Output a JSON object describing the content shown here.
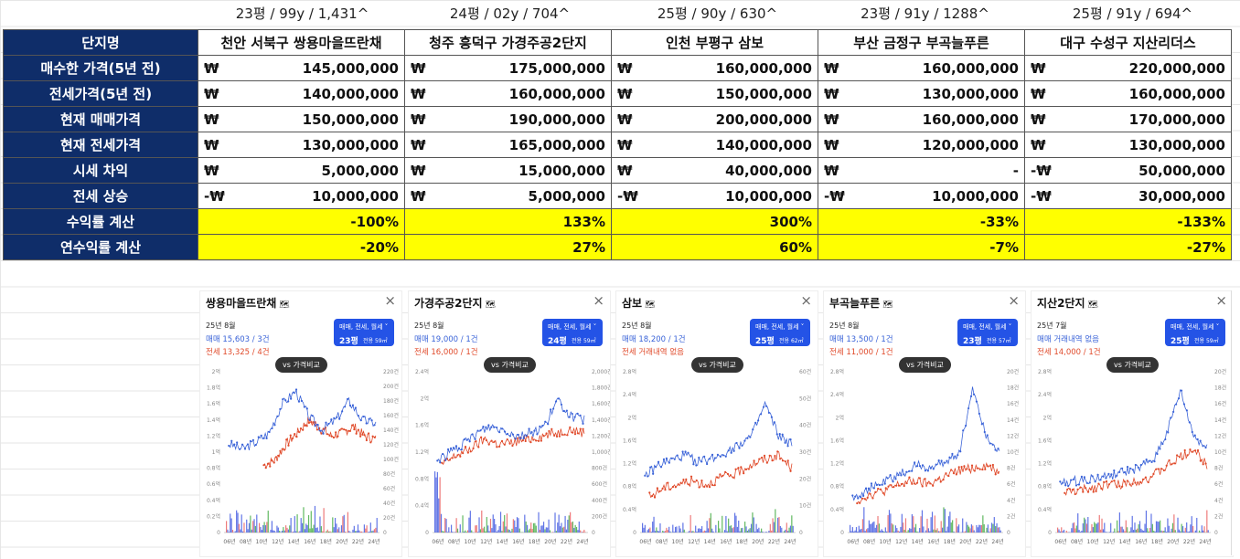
{
  "column_headers": [
    "23평 / 99y / 1,431^",
    "24평 / 02y / 704^",
    "25평 / 90y / 630^",
    "23평 / 91y / 1288^",
    "25평 / 91y / 694^"
  ],
  "table": {
    "corner_label": "단지명",
    "complex_names": [
      "천안 서북구 쌍용마을뜨란채",
      "청주 흥덕구 가경주공2단지",
      "인천 부평구 삼보",
      "부산 금정구 부곡늘푸른",
      "대구 수성구 지산리더스"
    ],
    "rows": [
      {
        "label": "매수한 가격(5년 전)",
        "cells": [
          [
            "₩",
            "145,000,000"
          ],
          [
            "₩",
            "175,000,000"
          ],
          [
            "₩",
            "160,000,000"
          ],
          [
            "₩",
            "160,000,000"
          ],
          [
            "₩",
            "220,000,000"
          ]
        ]
      },
      {
        "label": "전세가격(5년 전)",
        "cells": [
          [
            "₩",
            "140,000,000"
          ],
          [
            "₩",
            "160,000,000"
          ],
          [
            "₩",
            "150,000,000"
          ],
          [
            "₩",
            "130,000,000"
          ],
          [
            "₩",
            "160,000,000"
          ]
        ]
      },
      {
        "label": "현재 매매가격",
        "cells": [
          [
            "₩",
            "150,000,000"
          ],
          [
            "₩",
            "190,000,000"
          ],
          [
            "₩",
            "200,000,000"
          ],
          [
            "₩",
            "160,000,000"
          ],
          [
            "₩",
            "170,000,000"
          ]
        ]
      },
      {
        "label": "현재 전세가격",
        "cells": [
          [
            "₩",
            "130,000,000"
          ],
          [
            "₩",
            "165,000,000"
          ],
          [
            "₩",
            "140,000,000"
          ],
          [
            "₩",
            "120,000,000"
          ],
          [
            "₩",
            "130,000,000"
          ]
        ]
      },
      {
        "label": "시세 차익",
        "cells": [
          [
            "₩",
            "5,000,000"
          ],
          [
            "₩",
            "15,000,000"
          ],
          [
            "₩",
            "40,000,000"
          ],
          [
            "₩",
            "-"
          ],
          [
            "-₩",
            "50,000,000"
          ]
        ]
      },
      {
        "label": "전세 상승",
        "cells": [
          [
            "-₩",
            "10,000,000"
          ],
          [
            "₩",
            "5,000,000"
          ],
          [
            "-₩",
            "10,000,000"
          ],
          [
            "-₩",
            "10,000,000"
          ],
          [
            "-₩",
            "30,000,000"
          ]
        ]
      }
    ],
    "highlight_rows": [
      {
        "label": "수익률 계산",
        "values": [
          "-100%",
          "133%",
          "300%",
          "-33%",
          "-133%"
        ]
      },
      {
        "label": "연수익률 계산",
        "values": [
          "-20%",
          "27%",
          "60%",
          "-7%",
          "-27%"
        ]
      }
    ]
  },
  "colors": {
    "label_bg": "#0f2d69",
    "highlight": "#ffff00",
    "sale_line": "#3a63d8",
    "rent_line": "#e04a2a",
    "button": "#2453e6"
  },
  "panels": [
    {
      "title": "쌍용마을뜨란채",
      "date": "25년 8월",
      "sale": "매매 15,603 / 3건",
      "rent": "전세 13,325 / 4건",
      "btn_top": "매매, 전세, 월세",
      "btn_size": "23평",
      "btn_area": "전용 59㎡",
      "vs": "vs 가격비교"
    },
    {
      "title": "가경주공2단지",
      "date": "25년 8월",
      "sale": "매매 19,000 / 1건",
      "rent": "전세 16,000 / 1건",
      "btn_top": "매매, 전세, 월세",
      "btn_size": "24평",
      "btn_area": "전용 59㎡",
      "vs": "vs 가격비교"
    },
    {
      "title": "삼보",
      "date": "25년 8월",
      "sale": "매매 18,200 / 1건",
      "rent": "전세 거래내역 없음",
      "btn_top": "매매, 전세, 월세",
      "btn_size": "25평",
      "btn_area": "전용 62㎡",
      "vs": "vs 가격비교"
    },
    {
      "title": "부곡늘푸른",
      "date": "25년 8월",
      "sale": "매매 13,500 / 1건",
      "rent": "전세 11,000 / 1건",
      "btn_top": "매매, 전세, 월세",
      "btn_size": "23평",
      "btn_area": "전용 57㎡",
      "vs": "vs 가격비교"
    },
    {
      "title": "지산2단지",
      "date": "25년 7월",
      "sale": "매매 거래내역 없음",
      "rent": "전세 14,000 / 1건",
      "btn_top": "매매, 전세, 월세",
      "btn_size": "25평",
      "btn_area": "전용 59㎡",
      "vs": "vs 가격비교"
    }
  ],
  "x_ticks": [
    "06년",
    "08년",
    "10년",
    "12년",
    "14년",
    "16년",
    "18년",
    "20년",
    "22년",
    "24년"
  ],
  "y_left_ticks": [
    [
      "2억",
      "1.8억",
      "1.6억",
      "1.4억",
      "1.2억",
      "1억",
      "0.8억",
      "0.6억",
      "0.4억",
      "0.2억",
      "0"
    ],
    [
      "2.4억",
      "2억",
      "1.6억",
      "1.2억",
      "0.8억",
      "0.4억",
      "0"
    ],
    [
      "2.8억",
      "2.4억",
      "2억",
      "1.6억",
      "1.2억",
      "0.8억",
      "0.4억",
      "0"
    ],
    [
      "2.8억",
      "2.4억",
      "2억",
      "1.6억",
      "1.2억",
      "0.8억",
      "0.4억",
      "0"
    ],
    [
      "2.8억",
      "2.4억",
      "2억",
      "1.6억",
      "1.2억",
      "0.8억",
      "0.4억",
      "0"
    ]
  ],
  "y_right_ticks": [
    [
      "220건",
      "200건",
      "180건",
      "160건",
      "140건",
      "120건",
      "100건",
      "80건",
      "60건",
      "40건",
      "20건",
      "0"
    ],
    [
      "2,000건",
      "1,800건",
      "1,600건",
      "1,400건",
      "1,200건",
      "1,000건",
      "800건",
      "600건",
      "400건",
      "200건",
      "0"
    ],
    [
      "60건",
      "50건",
      "40건",
      "30건",
      "20건",
      "10건",
      "0"
    ],
    [
      "20건",
      "18건",
      "16건",
      "14건",
      "12건",
      "10건",
      "8건",
      "6건",
      "4건",
      "2건",
      "0"
    ],
    [
      "20건",
      "18건",
      "16건",
      "14건",
      "12건",
      "10건",
      "8건",
      "6건",
      "4건",
      "2건",
      "0"
    ]
  ]
}
